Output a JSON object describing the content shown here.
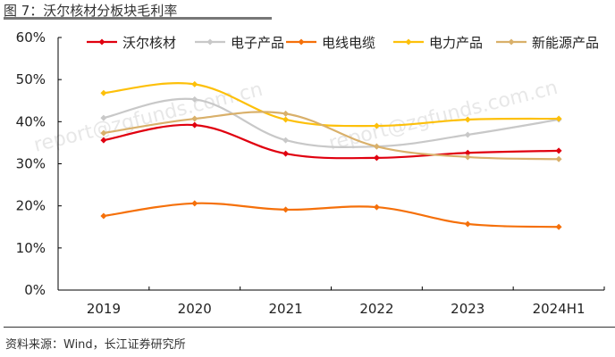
{
  "title": "图 7：沃尔核材分板块毛利率",
  "source": "资料来源：Wind，长江证券研究所",
  "watermark": "report@zgfunds.com.cn",
  "chart_data": {
    "type": "line",
    "title": "图 7：沃尔核材分板块毛利率",
    "xlabel": "",
    "ylabel": "",
    "categories": [
      "2019",
      "2020",
      "2021",
      "2022",
      "2023",
      "2024H1"
    ],
    "ylim": [
      0,
      60
    ],
    "yticks": [
      "0%",
      "10%",
      "20%",
      "30%",
      "40%",
      "50%",
      "60%"
    ],
    "ytick_values": [
      0,
      10,
      20,
      30,
      40,
      50,
      60
    ],
    "legend_position": "top",
    "grid": false,
    "series": [
      {
        "name": "沃尔核材",
        "color": "#e0000f",
        "values": [
          35.6,
          39.2,
          32.4,
          31.4,
          32.6,
          33.1
        ]
      },
      {
        "name": "电子产品",
        "color": "#c8c8c8",
        "values": [
          40.9,
          45.3,
          35.6,
          34.1,
          36.9,
          40.5
        ]
      },
      {
        "name": "电线电缆",
        "color": "#f5700a",
        "values": [
          17.6,
          20.6,
          19.1,
          19.7,
          15.7,
          15.0
        ]
      },
      {
        "name": "电力产品",
        "color": "#fdc00a",
        "values": [
          46.8,
          48.9,
          40.5,
          39.0,
          40.5,
          40.7
        ]
      },
      {
        "name": "新能源产品",
        "color": "#d9b06a",
        "values": [
          37.3,
          40.7,
          41.9,
          34.1,
          31.6,
          31.1
        ]
      }
    ]
  }
}
